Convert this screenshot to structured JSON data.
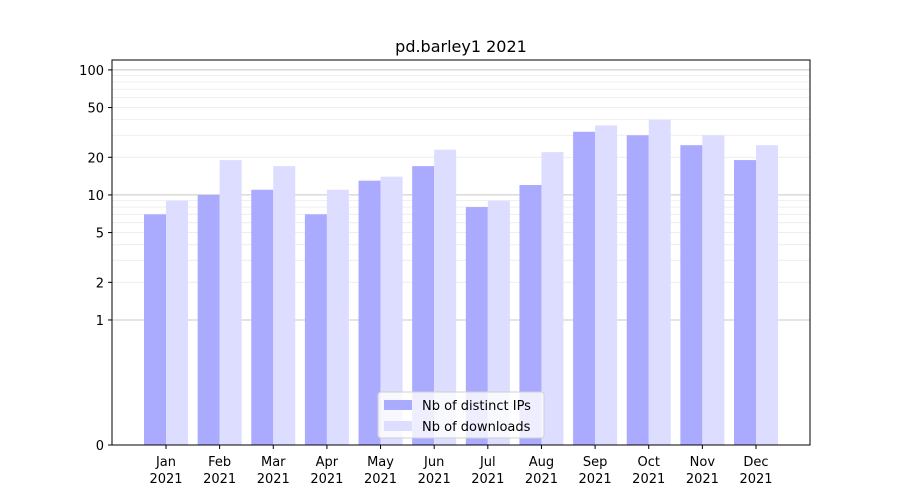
{
  "chart_data": {
    "type": "bar",
    "title": "pd.barley1 2021",
    "xlabel": "",
    "ylabel": "",
    "yscale": "symlog",
    "ylim": [
      0,
      120
    ],
    "yticks": [
      0,
      1,
      2,
      5,
      10,
      20,
      50,
      100
    ],
    "ytick_labels": [
      "0",
      "1",
      "2",
      "5",
      "10",
      "20",
      "50",
      "100"
    ],
    "categories": [
      [
        "Jan",
        "2021"
      ],
      [
        "Feb",
        "2021"
      ],
      [
        "Mar",
        "2021"
      ],
      [
        "Apr",
        "2021"
      ],
      [
        "May",
        "2021"
      ],
      [
        "Jun",
        "2021"
      ],
      [
        "Jul",
        "2021"
      ],
      [
        "Aug",
        "2021"
      ],
      [
        "Sep",
        "2021"
      ],
      [
        "Oct",
        "2021"
      ],
      [
        "Nov",
        "2021"
      ],
      [
        "Dec",
        "2021"
      ]
    ],
    "series": [
      {
        "name": "Nb of distinct IPs",
        "color": "#aaaaff",
        "values": [
          7,
          10,
          11,
          7,
          13,
          17,
          8,
          12,
          32,
          30,
          25,
          19
        ]
      },
      {
        "name": "Nb of downloads",
        "color": "#ddddff",
        "values": [
          9,
          19,
          17,
          11,
          14,
          23,
          9,
          22,
          36,
          40,
          30,
          25
        ]
      }
    ],
    "grid": true,
    "legend_position": "bottom-center"
  }
}
